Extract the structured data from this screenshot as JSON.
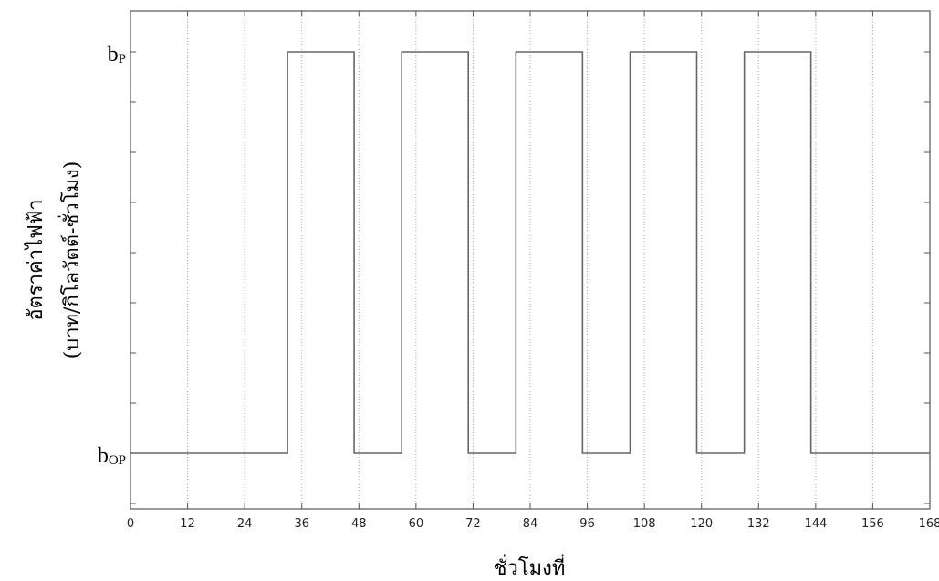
{
  "chart_data": {
    "type": "line",
    "title": "",
    "xlabel": "ชั่วโมงที่",
    "ylabel_line1": "อัตราค่าไฟฟ้า",
    "ylabel_line2": "(บาท/กิโลวัตต์-ชั่วโมง)",
    "xlim": [
      0,
      168
    ],
    "x_ticks": [
      0,
      12,
      24,
      36,
      48,
      60,
      72,
      84,
      96,
      108,
      120,
      132,
      144,
      156,
      168
    ],
    "y_levels": [
      {
        "name": "peak",
        "base": "b",
        "sub": "P"
      },
      {
        "name": "off-peak",
        "base": "b",
        "sub": "OP"
      }
    ],
    "grid": {
      "vertical": true,
      "horizontal": false
    },
    "series": [
      {
        "x": [
          0,
          33,
          33,
          47,
          47,
          57,
          57,
          71,
          71,
          81,
          81,
          95,
          95,
          105,
          105,
          119,
          119,
          129,
          129,
          143,
          143,
          168
        ],
        "level": [
          "off-peak",
          "off-peak",
          "peak",
          "peak",
          "off-peak",
          "off-peak",
          "peak",
          "peak",
          "off-peak",
          "off-peak",
          "peak",
          "peak",
          "off-peak",
          "off-peak",
          "peak",
          "peak",
          "off-peak",
          "off-peak",
          "peak",
          "peak",
          "off-peak",
          "off-peak"
        ]
      }
    ],
    "colors": {
      "line": "#666666",
      "axis": "#555555",
      "grid": "#aaaaaa"
    }
  }
}
